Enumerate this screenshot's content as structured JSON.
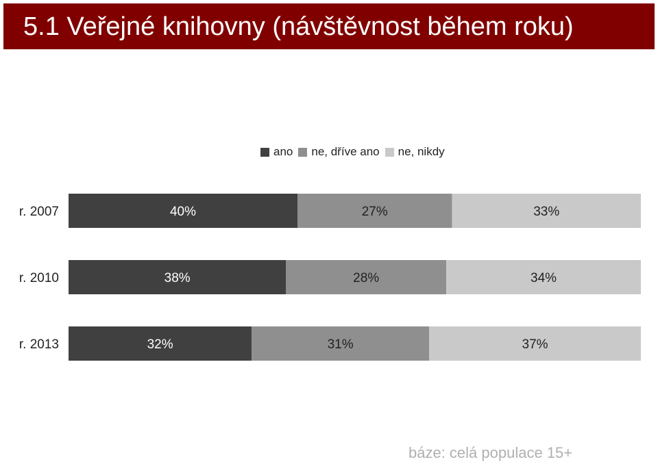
{
  "title": "5.1 Veřejné knihovny (návštěvnost během roku)",
  "footer_note": "báze: celá populace 15+",
  "chart_data": {
    "type": "bar",
    "orientation": "horizontal",
    "stacked": true,
    "percent": true,
    "categories": [
      "r. 2007",
      "r. 2010",
      "r. 2013"
    ],
    "series": [
      {
        "name": "ano",
        "values": [
          40,
          38,
          32
        ],
        "labels": [
          "40%",
          "38%",
          "32%"
        ],
        "color": "#404040"
      },
      {
        "name": "ne, dříve ano",
        "values": [
          27,
          28,
          31
        ],
        "labels": [
          "27%",
          "28%",
          "31%"
        ],
        "color": "#8f8f8f"
      },
      {
        "name": "ne, nikdy",
        "values": [
          33,
          34,
          37
        ],
        "labels": [
          "33%",
          "34%",
          "37%"
        ],
        "color": "#c9c9c9"
      }
    ],
    "xlim": [
      0,
      100
    ],
    "grid": false,
    "legend_position": "top-center"
  }
}
